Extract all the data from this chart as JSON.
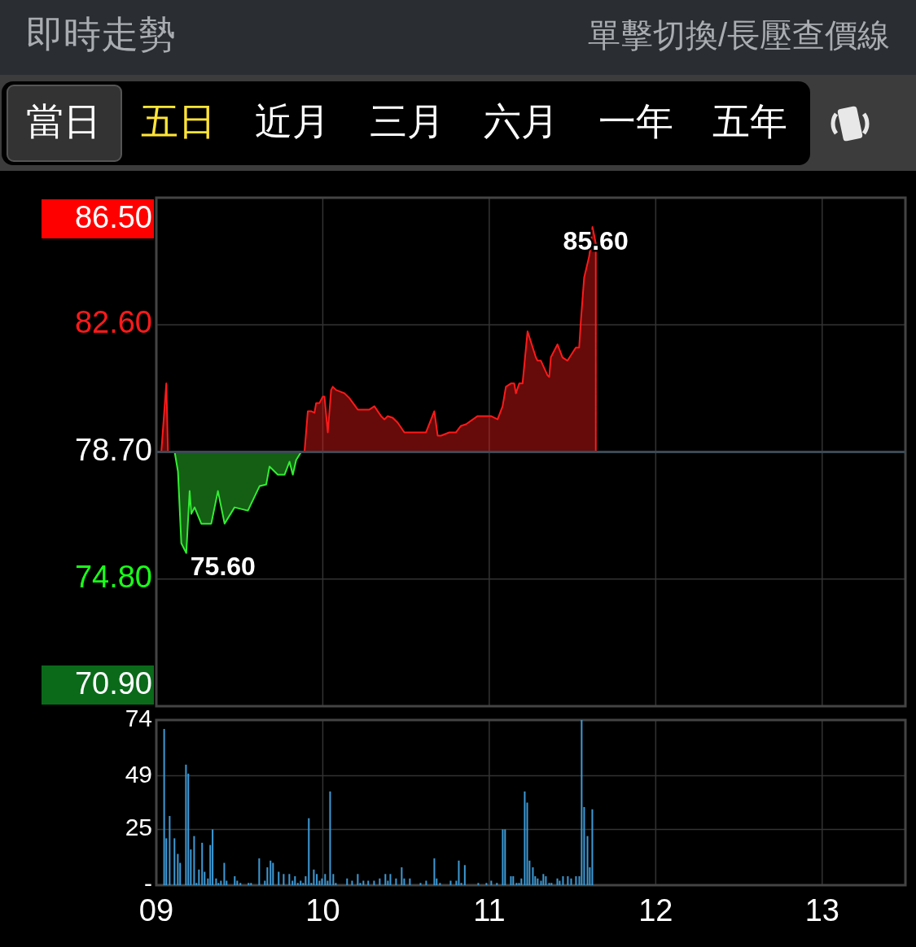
{
  "chart_data": [
    {
      "type": "area",
      "title": "即時走勢",
      "subtitle": "單擊切換/長壓查價線",
      "annotations": [
        "當日",
        "五日",
        "近月",
        "三月",
        "六月",
        "一年",
        "五年",
        {
          "text": "85.60",
          "x": 11.62,
          "y": 85.6
        },
        {
          "text": "75.60",
          "x": 9.18,
          "y": 75.6
        }
      ],
      "xlim": [
        9,
        13.5
      ],
      "xticks": [
        {
          "value": 9,
          "label": null
        },
        {
          "value": 10,
          "label": null
        },
        {
          "value": 11,
          "label": null
        },
        {
          "value": 12,
          "label": null
        },
        {
          "value": 13,
          "label": null
        }
      ],
      "ylim": [
        70.9,
        86.5
      ],
      "yticks": [
        {
          "value": 70.9,
          "label": "70.90"
        },
        {
          "value": 74.8,
          "label": "74.80"
        },
        {
          "value": 78.7,
          "label": "78.70"
        },
        {
          "value": 82.6,
          "label": "82.60"
        },
        {
          "value": 86.5,
          "label": "86.50"
        }
      ],
      "grid": true,
      "tick_labels": "y",
      "ref_lines": [
        {
          "axis": "y",
          "value": 78.7,
          "color": "#3b4a55"
        }
      ],
      "series": [
        {
          "color": "#ff1a1a",
          "x": [
            9.03,
            9.06,
            9.07,
            9.11
          ],
          "values": [
            78.7,
            80.8,
            78.7,
            78.7
          ]
        },
        {
          "color": "#33ee33",
          "x": [
            9.11,
            9.13,
            9.15,
            9.18,
            9.2,
            9.21,
            9.23,
            9.27,
            9.33,
            9.37,
            9.41,
            9.47,
            9.55,
            9.62,
            9.66,
            9.68,
            9.73,
            9.77,
            9.8,
            9.82,
            9.84,
            9.87
          ],
          "values": [
            78.7,
            78.1,
            75.9,
            75.6,
            77.5,
            76.8,
            77.0,
            76.5,
            76.5,
            77.5,
            76.5,
            77.0,
            76.9,
            77.65,
            77.7,
            78.25,
            78.0,
            78.0,
            78.4,
            78.0,
            78.45,
            78.7
          ]
        },
        {
          "color": "#ff1a1a",
          "x": [
            9.87,
            9.89,
            9.91,
            9.93,
            9.95,
            9.96,
            9.98,
            10.0,
            10.01,
            10.03,
            10.05,
            10.06,
            10.08,
            10.13,
            10.16,
            10.21,
            10.28,
            10.31,
            10.35,
            10.37,
            10.39,
            10.42,
            10.45,
            10.49,
            10.62,
            10.67,
            10.69,
            10.71,
            10.76,
            10.8,
            10.83,
            10.86,
            10.93,
            11.01,
            11.05,
            11.08,
            11.1,
            11.13,
            11.15,
            11.16,
            11.18,
            11.2,
            11.23,
            11.28,
            11.29,
            11.31,
            11.35,
            11.36,
            11.37,
            11.41,
            11.44,
            11.47,
            11.52,
            11.54,
            11.55,
            11.57,
            11.6,
            11.61,
            11.62,
            11.64
          ],
          "values": [
            78.7,
            78.7,
            79.95,
            79.95,
            79.9,
            80.2,
            80.2,
            80.4,
            80.4,
            79.3,
            80.6,
            80.7,
            80.6,
            80.5,
            80.35,
            80.0,
            80.0,
            80.1,
            79.8,
            79.7,
            79.8,
            79.75,
            79.6,
            79.3,
            79.3,
            79.95,
            79.2,
            79.2,
            79.3,
            79.3,
            79.5,
            79.55,
            79.8,
            79.8,
            79.7,
            80.1,
            80.7,
            80.8,
            80.8,
            80.5,
            80.8,
            80.8,
            82.4,
            81.6,
            81.5,
            81.5,
            81.05,
            81.0,
            81.6,
            82.0,
            81.6,
            81.5,
            81.9,
            81.9,
            82.7,
            84.05,
            84.7,
            85.05,
            85.6,
            85.1
          ]
        }
      ]
    },
    {
      "type": "bar",
      "color": "#3d9ad6",
      "x": [
        9.047,
        9.06,
        9.08,
        9.109,
        9.129,
        9.143,
        9.178,
        9.192,
        9.207,
        9.227,
        9.241,
        9.256,
        9.275,
        9.29,
        9.31,
        9.324,
        9.338,
        9.359,
        9.373,
        9.388,
        9.408,
        9.422,
        9.471,
        9.486,
        9.505,
        9.554,
        9.569,
        9.618,
        9.652,
        9.667,
        9.686,
        9.701,
        9.735,
        9.765,
        9.799,
        9.818,
        9.833,
        9.85,
        9.867,
        9.882,
        9.897,
        9.916,
        9.931,
        9.946,
        9.964,
        9.98,
        9.995,
        10.014,
        10.029,
        10.044,
        10.063,
        10.078,
        10.146,
        10.176,
        10.21,
        10.225,
        10.244,
        10.273,
        10.308,
        10.342,
        10.376,
        10.391,
        10.406,
        10.44,
        10.474,
        10.489,
        10.523,
        10.587,
        10.621,
        10.67,
        10.684,
        10.704,
        10.768,
        10.802,
        10.817,
        10.832,
        10.853,
        10.934,
        10.983,
        11.012,
        11.046,
        11.081,
        11.095,
        11.13,
        11.144,
        11.164,
        11.179,
        11.193,
        11.213,
        11.228,
        11.242,
        11.262,
        11.276,
        11.291,
        11.311,
        11.325,
        11.34,
        11.36,
        11.374,
        11.409,
        11.423,
        11.443,
        11.472,
        11.492,
        11.521,
        11.541,
        11.555,
        11.57,
        11.59,
        11.604,
        11.619
      ],
      "values": [
        70,
        21,
        31,
        21,
        14,
        10,
        54,
        50,
        16,
        22,
        1,
        7,
        19,
        6,
        3,
        18,
        25,
        3,
        1,
        2,
        10,
        2,
        4,
        2,
        1,
        1,
        1,
        12,
        2,
        8,
        11,
        10,
        6,
        5,
        5,
        2,
        4,
        1,
        2,
        1,
        4,
        30,
        1,
        7,
        5,
        2,
        3,
        5,
        2,
        42,
        5,
        1,
        3,
        2,
        5,
        1,
        2,
        2,
        2,
        3,
        5,
        2,
        5,
        3,
        8,
        3,
        3,
        1,
        2,
        12,
        3,
        1,
        2,
        2,
        11,
        1,
        9,
        1,
        1,
        2,
        1,
        25,
        25,
        4,
        4,
        1,
        1,
        3,
        42,
        37,
        11,
        8,
        4,
        3,
        2,
        5,
        4,
        1,
        1,
        3,
        2,
        4,
        4,
        3,
        4,
        4,
        74,
        35,
        22,
        8,
        34
      ],
      "xlim": [
        9,
        13.5
      ],
      "xticks": [
        {
          "value": 9,
          "label": "09"
        },
        {
          "value": 10,
          "label": "10"
        },
        {
          "value": 11,
          "label": "11"
        },
        {
          "value": 12,
          "label": "12"
        },
        {
          "value": 13,
          "label": "13"
        }
      ],
      "ylim": [
        0,
        74
      ],
      "yticks": [
        {
          "value": 0,
          "label": "-"
        },
        25,
        49,
        74
      ],
      "grid": true
    }
  ]
}
